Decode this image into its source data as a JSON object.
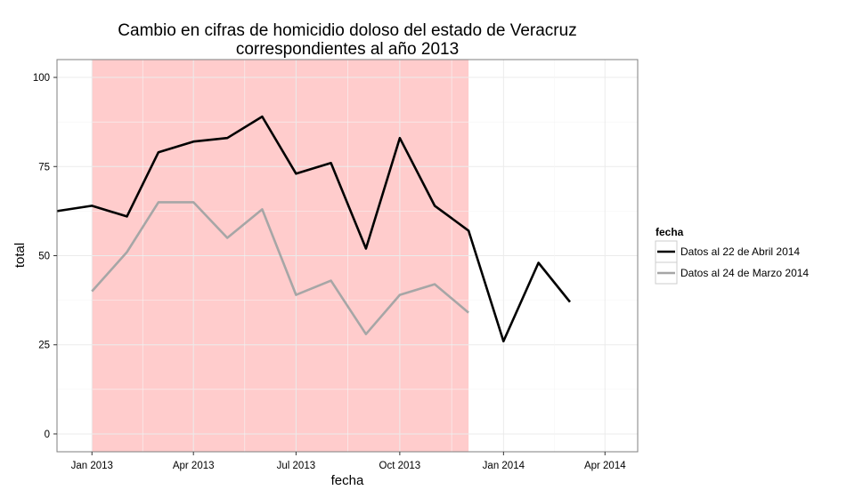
{
  "chart_data": {
    "type": "line",
    "title": [
      "Cambio en cifras de homicidio doloso del estado de Veracruz",
      "correspondientes al año 2013"
    ],
    "xlabel": "fecha",
    "ylabel": "total",
    "xlim": [
      "2012-12-01",
      "2014-04-30"
    ],
    "ylim": [
      -5,
      105
    ],
    "x_ticks": [
      {
        "date": "2013-01-01",
        "label": "Jan 2013"
      },
      {
        "date": "2013-04-01",
        "label": "Apr 2013"
      },
      {
        "date": "2013-07-01",
        "label": "Jul 2013"
      },
      {
        "date": "2013-10-01",
        "label": "Oct 2013"
      },
      {
        "date": "2014-01-01",
        "label": "Jan 2014"
      },
      {
        "date": "2014-04-01",
        "label": "Apr 2014"
      }
    ],
    "y_ticks": [
      0,
      25,
      50,
      75,
      100
    ],
    "grid": true,
    "highlight": {
      "from": "2013-01-01",
      "to": "2013-12-01",
      "color": "#ffcccc"
    },
    "legend": {
      "title": "fecha",
      "position": "right"
    },
    "series": [
      {
        "name": "Datos al 22 de Abril 2014",
        "color": "#000000",
        "points": [
          [
            "2012-12-01",
            62.5
          ],
          [
            "2013-01-01",
            64
          ],
          [
            "2013-02-01",
            61
          ],
          [
            "2013-03-01",
            79
          ],
          [
            "2013-04-01",
            82
          ],
          [
            "2013-05-01",
            83
          ],
          [
            "2013-06-01",
            89
          ],
          [
            "2013-07-01",
            73
          ],
          [
            "2013-08-01",
            76
          ],
          [
            "2013-09-01",
            52
          ],
          [
            "2013-10-01",
            83
          ],
          [
            "2013-11-01",
            64
          ],
          [
            "2013-12-01",
            57
          ],
          [
            "2014-01-01",
            26
          ],
          [
            "2014-02-01",
            48
          ],
          [
            "2014-03-01",
            37
          ]
        ]
      },
      {
        "name": "Datos al 24 de Marzo 2014",
        "color": "#a6a6a6",
        "points": [
          [
            "2013-01-01",
            40
          ],
          [
            "2013-02-01",
            51
          ],
          [
            "2013-03-01",
            65
          ],
          [
            "2013-04-01",
            65
          ],
          [
            "2013-05-01",
            55
          ],
          [
            "2013-06-01",
            63
          ],
          [
            "2013-07-01",
            39
          ],
          [
            "2013-08-01",
            43
          ],
          [
            "2013-09-01",
            28
          ],
          [
            "2013-10-01",
            39
          ],
          [
            "2013-11-01",
            42
          ],
          [
            "2013-12-01",
            34
          ]
        ]
      }
    ]
  }
}
